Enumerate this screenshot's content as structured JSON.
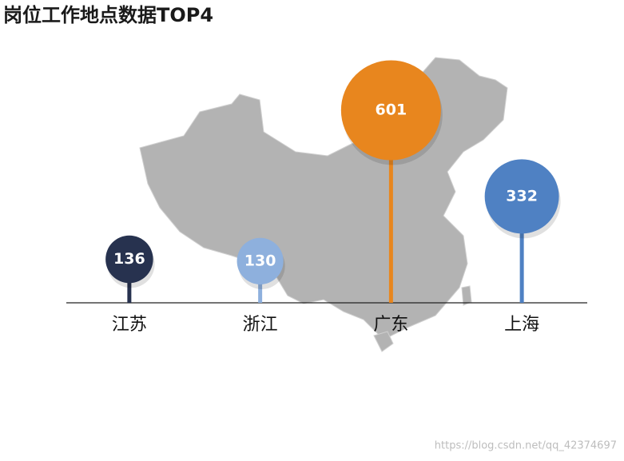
{
  "chart_data": {
    "type": "lollipop",
    "title": "岗位工作地点数据TOP4",
    "categories": [
      "江苏",
      "浙江",
      "广东",
      "上海"
    ],
    "values": [
      136,
      130,
      601,
      332
    ],
    "colors": [
      "#27324f",
      "#8eb0dd",
      "#e8861e",
      "#4f81c3"
    ],
    "watermark": "https://blog.csdn.net/qq_42374697"
  }
}
